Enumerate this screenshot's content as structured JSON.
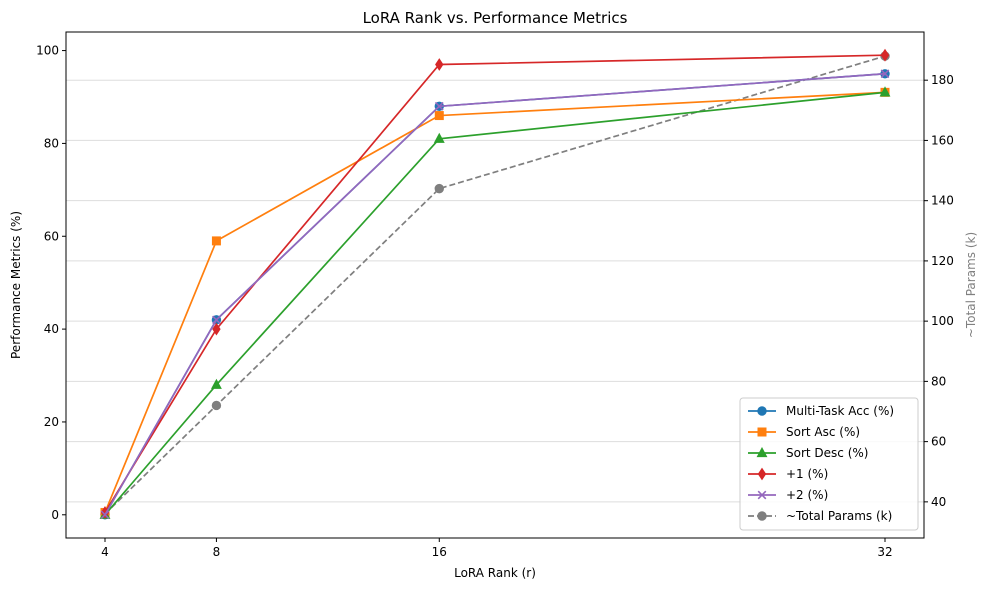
{
  "chart_data": {
    "type": "line",
    "title": "LoRA Rank vs. Performance Metrics",
    "xlabel": "LoRA Rank (r)",
    "ylabel": "Performance Metrics (%)",
    "y2label": "~Total Params (k)",
    "x": [
      4,
      8,
      16,
      32
    ],
    "x_ticks": [
      "4",
      "8",
      "16",
      "32"
    ],
    "xlim": [
      2.6,
      33.4
    ],
    "ylim": [
      -5,
      104
    ],
    "y_ticks": [
      0,
      20,
      40,
      60,
      80,
      100
    ],
    "y2lim": [
      28,
      196
    ],
    "y2_ticks": [
      40,
      60,
      80,
      100,
      120,
      140,
      160,
      180
    ],
    "grid": "y2-axis horizontal",
    "legend_position": "bottom-right",
    "series": [
      {
        "name": "Multi-Task Acc (%)",
        "values": [
          0,
          42,
          88,
          95
        ],
        "color": "#1f77b4",
        "marker": "circle",
        "dashed": false,
        "axis": "left"
      },
      {
        "name": "Sort Asc (%)",
        "values": [
          0.5,
          59,
          86,
          91
        ],
        "color": "#ff7f0e",
        "marker": "square",
        "dashed": false,
        "axis": "left"
      },
      {
        "name": "Sort Desc (%)",
        "values": [
          0,
          28,
          81,
          91
        ],
        "color": "#2ca02c",
        "marker": "triangle",
        "dashed": false,
        "axis": "left"
      },
      {
        "name": "+1 (%)",
        "values": [
          0.5,
          40,
          97,
          99
        ],
        "color": "#d62728",
        "marker": "diamond",
        "dashed": false,
        "axis": "left"
      },
      {
        "name": "+2 (%)",
        "values": [
          0,
          42,
          88,
          95
        ],
        "color": "#9467bd",
        "marker": "x",
        "dashed": false,
        "axis": "left"
      },
      {
        "name": "~Total Params (k)",
        "values": [
          36,
          72,
          144,
          188
        ],
        "color": "#7f7f7f",
        "marker": "circle",
        "dashed": true,
        "axis": "right"
      }
    ]
  }
}
